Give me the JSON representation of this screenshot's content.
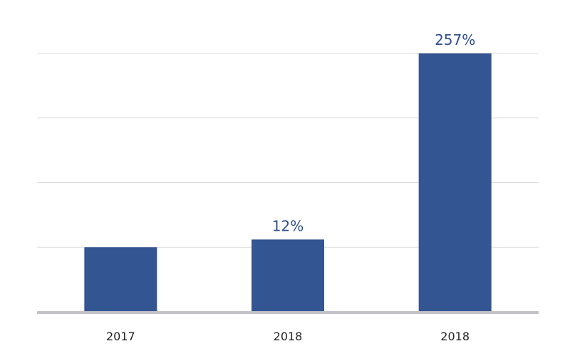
{
  "chart_data": {
    "type": "bar",
    "categories": [
      "2017",
      "2018",
      "2018"
    ],
    "values": [
      100,
      112,
      400
    ],
    "data_labels": [
      "",
      "12%",
      "257%"
    ],
    "title": "",
    "xlabel": "",
    "ylabel": "",
    "ylim": [
      0,
      400
    ],
    "gridlines": [
      100,
      200,
      300,
      400
    ],
    "grid": true,
    "legend": "none",
    "colors": {
      "bar": "#335591",
      "label": "#2f4f8f",
      "grid": "#d9d9d9",
      "baseline": "#c3c2c8"
    }
  }
}
